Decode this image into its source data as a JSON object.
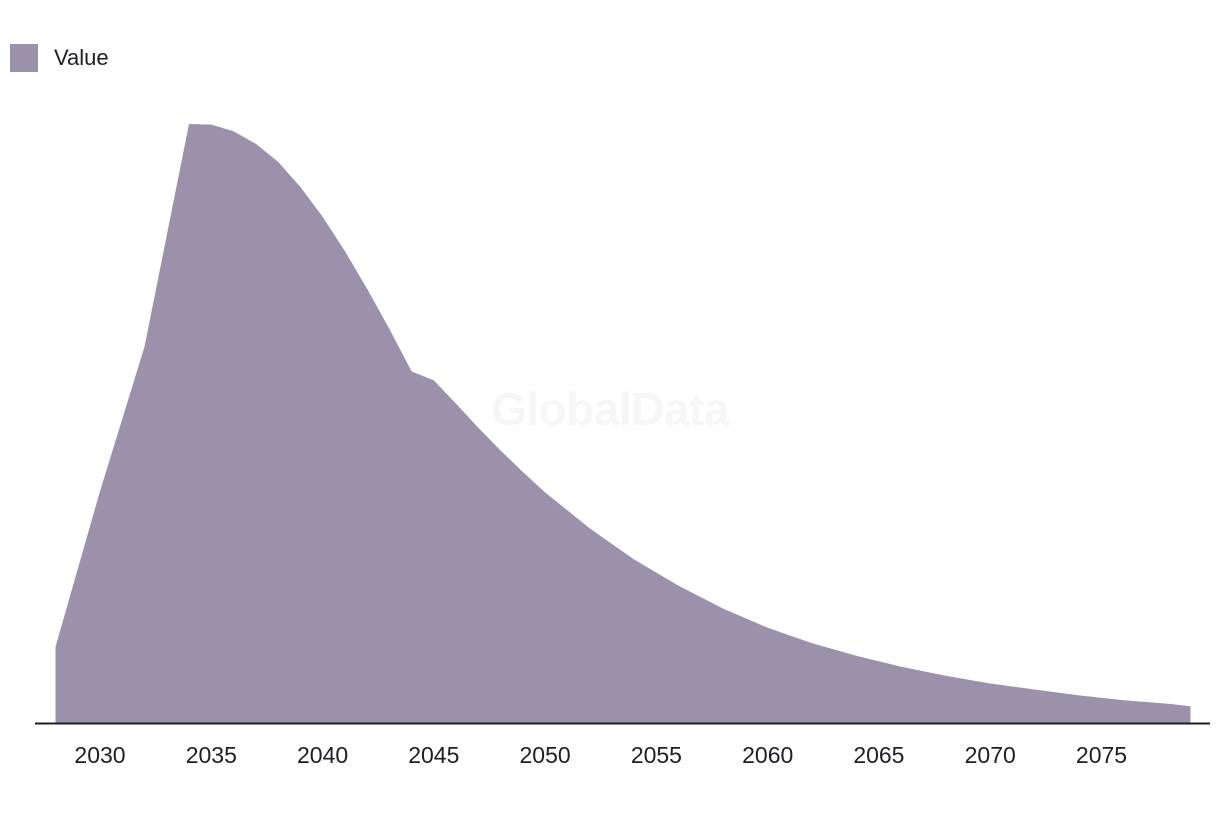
{
  "legend": {
    "label": "Value"
  },
  "watermark": "GlobalData",
  "colors": {
    "area": "#9b91aa",
    "axis": "#1e1e28",
    "text": "#1e1e28"
  },
  "chart_data": {
    "type": "area",
    "title": "",
    "xlabel": "",
    "ylabel": "",
    "grid": false,
    "legend_position": "top-left",
    "xlim": [
      2028,
      2079
    ],
    "ylim": [
      0,
      100
    ],
    "x_ticks": [
      2030,
      2035,
      2040,
      2045,
      2050,
      2055,
      2060,
      2065,
      2070,
      2075
    ],
    "series": [
      {
        "name": "Value",
        "x": [
          2028,
          2030,
          2032,
          2034,
          2035,
          2036,
          2037,
          2038,
          2039,
          2040,
          2041,
          2042,
          2043,
          2044,
          2045,
          2046,
          2047,
          2048,
          2049,
          2050,
          2052,
          2054,
          2056,
          2058,
          2060,
          2062,
          2064,
          2066,
          2068,
          2070,
          2072,
          2074,
          2076,
          2078,
          2079
        ],
        "values": [
          12.7,
          38.7,
          62.8,
          100,
          99.9,
          98.8,
          96.7,
          93.7,
          89.5,
          84.5,
          78.8,
          72.5,
          65.8,
          58.7,
          57.2,
          53.3,
          49.3,
          45.5,
          41.9,
          38.5,
          32.5,
          27.3,
          22.9,
          19.1,
          15.9,
          13.3,
          11.2,
          9.4,
          7.9,
          6.6,
          5.6,
          4.6,
          3.8,
          3.2,
          2.8
        ]
      }
    ]
  }
}
